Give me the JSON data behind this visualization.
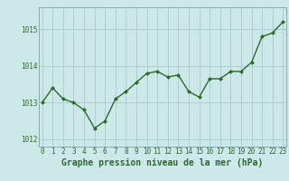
{
  "x": [
    0,
    1,
    2,
    3,
    4,
    5,
    6,
    7,
    8,
    9,
    10,
    11,
    12,
    13,
    14,
    15,
    16,
    17,
    18,
    19,
    20,
    21,
    22,
    23
  ],
  "y": [
    1013.0,
    1013.4,
    1013.1,
    1013.0,
    1012.8,
    1012.3,
    1012.5,
    1013.1,
    1013.3,
    1013.55,
    1013.8,
    1013.85,
    1013.7,
    1013.75,
    1013.3,
    1013.15,
    1013.65,
    1013.65,
    1013.85,
    1013.85,
    1014.1,
    1014.8,
    1014.9,
    1015.2
  ],
  "line_color": "#2d6a2d",
  "marker_color": "#2d6a2d",
  "bg_color": "#cce8e8",
  "grid_color": "#aacccc",
  "title": "Graphe pression niveau de la mer (hPa)",
  "ylim": [
    1011.8,
    1015.6
  ],
  "yticks": [
    1012,
    1013,
    1014,
    1015
  ],
  "xlim": [
    -0.3,
    23.3
  ],
  "xticks": [
    0,
    1,
    2,
    3,
    4,
    5,
    6,
    7,
    8,
    9,
    10,
    11,
    12,
    13,
    14,
    15,
    16,
    17,
    18,
    19,
    20,
    21,
    22,
    23
  ],
  "tick_label_fontsize": 5.5,
  "title_fontsize": 7,
  "marker_size": 2.5,
  "line_width": 1.0
}
